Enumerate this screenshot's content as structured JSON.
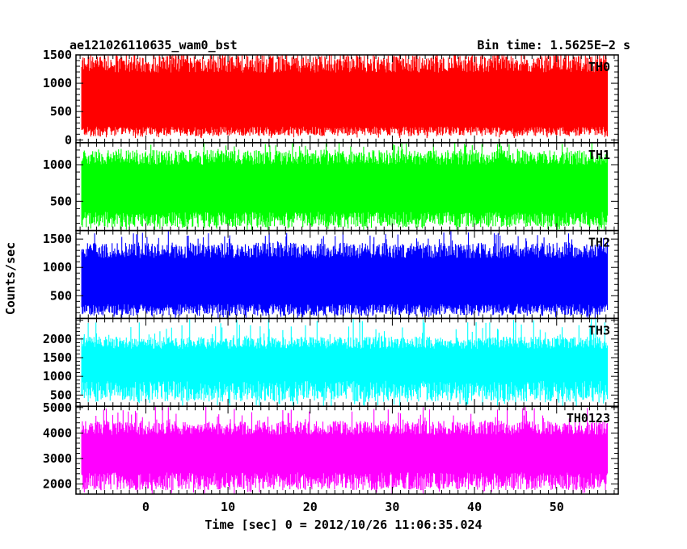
{
  "header": {
    "left_title": "ae121026110635_wam0_bst",
    "right_title": "Bin time: 1.5625E−2 s"
  },
  "chart_data": {
    "type": "line",
    "title": "ae121026110635_wam0_bst",
    "subtitle": "Bin time: 1.5625E−2 s",
    "xlabel": "Time [sec] 0 = 2012/10/26 11:06:35.024",
    "ylabel": "Counts/sec",
    "xlim": [
      -8.5,
      57.5
    ],
    "xticks": [
      0,
      10,
      20,
      30,
      40,
      50
    ],
    "x_data_range": [
      -7.8,
      56.2
    ],
    "grid": false,
    "panels": [
      {
        "name": "TH0",
        "color": "#ff0000",
        "ylim": [
          -50,
          1500
        ],
        "yticks": [
          0,
          500,
          1000,
          1500
        ],
        "mean": 700,
        "low_envelope": 150,
        "high_envelope": 1350,
        "min": 30,
        "max": 1500
      },
      {
        "name": "TH1",
        "color": "#00ff00",
        "ylim": [
          100,
          1300
        ],
        "yticks": [
          500,
          1000
        ],
        "mean": 700,
        "low_envelope": 250,
        "high_envelope": 1100,
        "min": 100,
        "max": 1300
      },
      {
        "name": "TH2",
        "color": "#0000ff",
        "ylim": [
          100,
          1650
        ],
        "yticks": [
          500,
          1000,
          1500
        ],
        "mean": 750,
        "low_envelope": 250,
        "high_envelope": 1300,
        "min": 100,
        "max": 1650
      },
      {
        "name": "TH3",
        "color": "#00ffff",
        "ylim": [
          200,
          2550
        ],
        "yticks": [
          500,
          1000,
          1500,
          2000
        ],
        "mean": 1250,
        "low_envelope": 600,
        "high_envelope": 1900,
        "min": 200,
        "max": 2550
      },
      {
        "name": "TH0123",
        "color": "#ff00ff",
        "ylim": [
          1600,
          5050
        ],
        "yticks": [
          2000,
          3000,
          4000,
          5000
        ],
        "mean": 3100,
        "low_envelope": 2100,
        "high_envelope": 4200,
        "min": 1600,
        "max": 5050
      }
    ]
  }
}
